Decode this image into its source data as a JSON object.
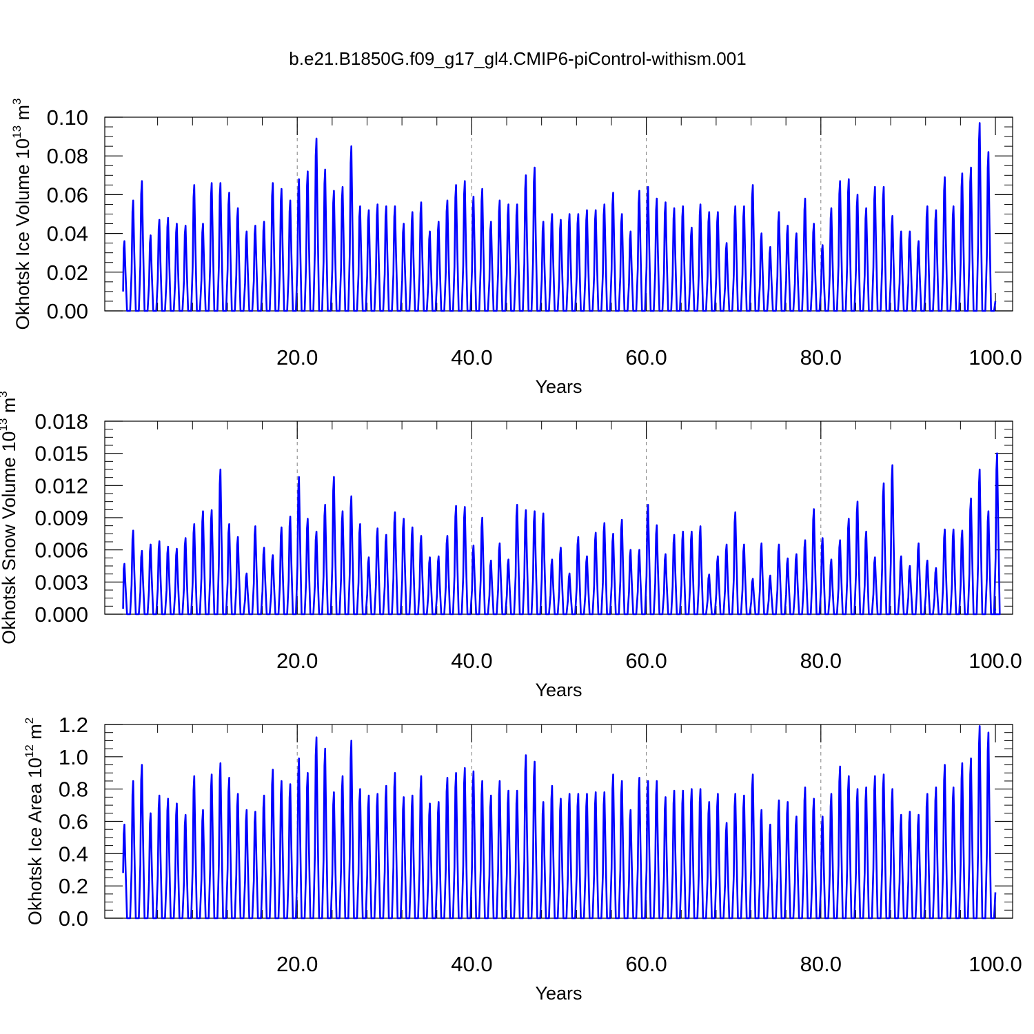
{
  "title": "b.e21.B1850G.f09_g17_gl4.CMIP6-piControl-withism.001",
  "colors": {
    "series": "#0000ff",
    "axes": "#000000",
    "grid": "#808080"
  },
  "chart_data": [
    {
      "type": "line",
      "ylabel": {
        "text": "Okhotsk Ice Volume 10",
        "exp": "13",
        "unit": " m",
        "unit_exp": "3"
      },
      "xlabel": "Years",
      "xlim": [
        0,
        100
      ],
      "ylim": [
        0,
        0.1
      ],
      "x_ticks": [
        "20.0",
        "40.0",
        "60.0",
        "80.0",
        "100.0"
      ],
      "y_ticks": [
        "0.00",
        "0.02",
        "0.04",
        "0.06",
        "0.08",
        "0.10"
      ],
      "y_tick_values": [
        0,
        0.02,
        0.04,
        0.06,
        0.08,
        0.1
      ],
      "grid": "dashed vertical lines at 20, 40, 60, 80",
      "series": [
        {
          "annual_maxima": [
            0.036,
            0.057,
            0.067,
            0.039,
            0.047,
            0.048,
            0.045,
            0.044,
            0.065,
            0.045,
            0.066,
            0.066,
            0.061,
            0.053,
            0.041,
            0.044,
            0.046,
            0.066,
            0.063,
            0.057,
            0.068,
            0.072,
            0.089,
            0.073,
            0.062,
            0.064,
            0.085,
            0.054,
            0.052,
            0.055,
            0.054,
            0.054,
            0.045,
            0.051,
            0.056,
            0.041,
            0.046,
            0.057,
            0.065,
            0.067,
            0.059,
            0.063,
            0.046,
            0.057,
            0.055,
            0.055,
            0.07,
            0.074,
            0.046,
            0.05,
            0.047,
            0.05,
            0.05,
            0.052,
            0.052,
            0.055,
            0.061,
            0.05,
            0.041,
            0.062,
            0.064,
            0.058,
            0.056,
            0.053,
            0.054,
            0.043,
            0.055,
            0.051,
            0.051,
            0.035,
            0.054,
            0.054,
            0.065,
            0.04,
            0.033,
            0.051,
            0.044,
            0.04,
            0.058,
            0.045,
            0.034,
            0.053,
            0.067,
            0.068,
            0.06,
            0.053,
            0.064,
            0.064,
            0.049,
            0.041,
            0.041,
            0.036,
            0.054,
            0.052,
            0.069,
            0.054,
            0.071,
            0.074,
            0.097,
            0.082
          ],
          "start_value": 0.01,
          "end_value": 0.005
        }
      ]
    },
    {
      "type": "line",
      "ylabel": {
        "text": "Okhotsk Snow Volume 10",
        "exp": "13",
        "unit": " m",
        "unit_exp": "3"
      },
      "xlabel": "Years",
      "xlim": [
        0,
        100
      ],
      "ylim": [
        0,
        0.018
      ],
      "x_ticks": [
        "20.0",
        "40.0",
        "60.0",
        "80.0",
        "100.0"
      ],
      "y_ticks": [
        "0.000",
        "0.003",
        "0.006",
        "0.009",
        "0.012",
        "0.015",
        "0.018"
      ],
      "y_tick_values": [
        0,
        0.003,
        0.006,
        0.009,
        0.012,
        0.015,
        0.018
      ],
      "grid": "dashed vertical lines at 20, 40, 60, 80",
      "series": [
        {
          "annual_maxima": [
            0.0047,
            0.0078,
            0.0059,
            0.0065,
            0.0068,
            0.0063,
            0.0061,
            0.0071,
            0.0084,
            0.0096,
            0.0097,
            0.0135,
            0.0084,
            0.0072,
            0.0038,
            0.0082,
            0.0062,
            0.0055,
            0.0081,
            0.0091,
            0.0128,
            0.0089,
            0.0077,
            0.0102,
            0.0128,
            0.0096,
            0.011,
            0.0084,
            0.0053,
            0.008,
            0.0074,
            0.0095,
            0.0089,
            0.0081,
            0.0073,
            0.0053,
            0.0054,
            0.0073,
            0.0101,
            0.01,
            0.0064,
            0.009,
            0.005,
            0.0066,
            0.0051,
            0.0102,
            0.0097,
            0.0096,
            0.0094,
            0.0051,
            0.0062,
            0.0038,
            0.0072,
            0.0054,
            0.0076,
            0.0085,
            0.0075,
            0.0088,
            0.006,
            0.006,
            0.0102,
            0.0083,
            0.0056,
            0.0074,
            0.0077,
            0.0077,
            0.0082,
            0.0037,
            0.0054,
            0.0065,
            0.0095,
            0.0065,
            0.0033,
            0.0066,
            0.0036,
            0.0065,
            0.0052,
            0.0056,
            0.0069,
            0.0098,
            0.0071,
            0.0051,
            0.0069,
            0.0089,
            0.0105,
            0.0077,
            0.0053,
            0.0122,
            0.0139,
            0.0054,
            0.0045,
            0.0066,
            0.005,
            0.0043,
            0.0079,
            0.0079,
            0.0078,
            0.0108,
            0.0135,
            0.0096,
            0.015
          ],
          "start_value": 0.0005,
          "end_value": 0.0005
        }
      ]
    },
    {
      "type": "line",
      "ylabel": {
        "text": "Okhotsk Ice Area 10",
        "exp": "12",
        "unit": " m",
        "unit_exp": "2"
      },
      "xlabel": "Years",
      "xlim": [
        0,
        100
      ],
      "ylim": [
        0,
        1.2
      ],
      "x_ticks": [
        "20.0",
        "40.0",
        "60.0",
        "80.0",
        "100.0"
      ],
      "y_ticks": [
        "0.0",
        "0.2",
        "0.4",
        "0.6",
        "0.8",
        "1.0",
        "1.2"
      ],
      "y_tick_values": [
        0,
        0.2,
        0.4,
        0.6,
        0.8,
        1.0,
        1.2
      ],
      "grid": "dashed vertical lines at 20, 40, 60, 80",
      "series": [
        {
          "annual_maxima": [
            0.58,
            0.85,
            0.95,
            0.65,
            0.76,
            0.74,
            0.71,
            0.64,
            0.88,
            0.67,
            0.89,
            0.96,
            0.87,
            0.77,
            0.67,
            0.66,
            0.76,
            0.92,
            0.85,
            0.83,
            0.99,
            0.9,
            1.12,
            1.05,
            0.78,
            0.88,
            1.1,
            0.8,
            0.76,
            0.77,
            0.82,
            0.9,
            0.75,
            0.76,
            0.88,
            0.71,
            0.72,
            0.87,
            0.9,
            0.93,
            0.91,
            0.85,
            0.76,
            0.85,
            0.79,
            0.79,
            1.01,
            0.97,
            0.72,
            0.82,
            0.74,
            0.77,
            0.77,
            0.77,
            0.78,
            0.78,
            0.89,
            0.85,
            0.67,
            0.87,
            0.85,
            0.85,
            0.75,
            0.79,
            0.79,
            0.8,
            0.8,
            0.72,
            0.77,
            0.59,
            0.77,
            0.76,
            0.89,
            0.67,
            0.58,
            0.73,
            0.72,
            0.63,
            0.81,
            0.74,
            0.63,
            0.77,
            0.94,
            0.88,
            0.8,
            0.81,
            0.88,
            0.89,
            0.8,
            0.64,
            0.66,
            0.64,
            0.77,
            0.81,
            0.95,
            0.81,
            0.96,
            0.99,
            1.19,
            1.15
          ],
          "start_value": 0.28,
          "end_value": 0.16
        }
      ]
    }
  ]
}
